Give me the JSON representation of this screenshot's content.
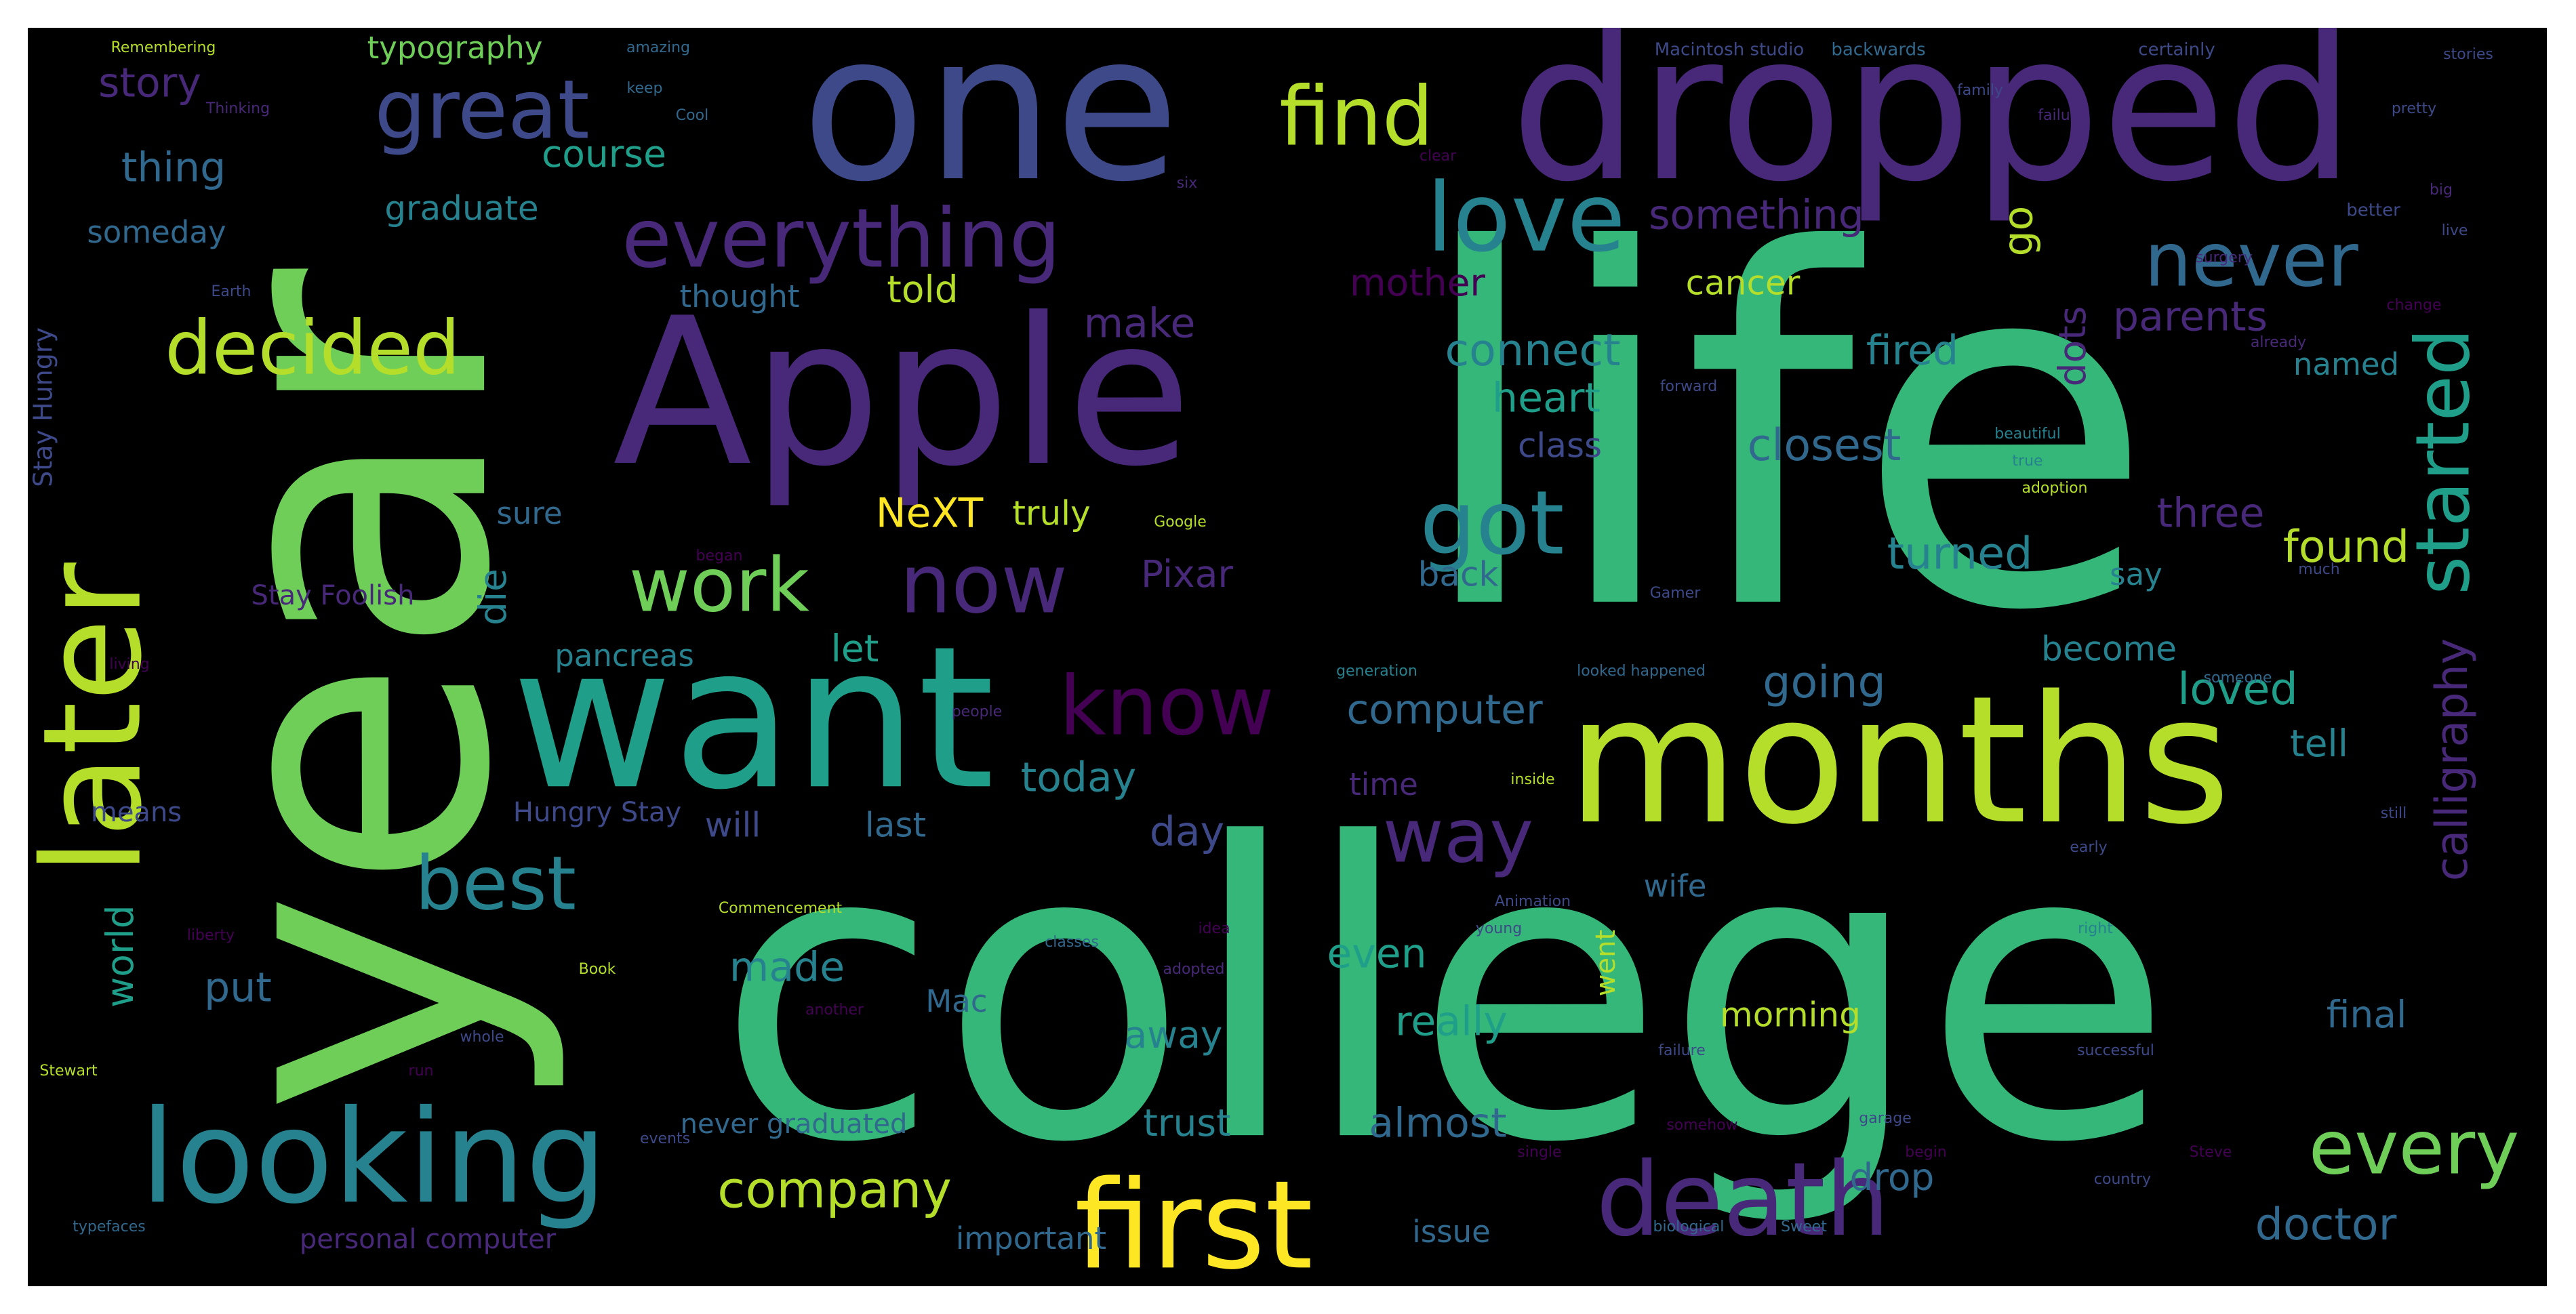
{
  "background_color": "#000000",
  "frame_color": "#ffffff",
  "palette": [
    "#440154",
    "#482878",
    "#3e4989",
    "#31688e",
    "#26828e",
    "#1f9e89",
    "#35b779",
    "#6ece58",
    "#b5de2b",
    "#fde725"
  ],
  "words": [
    {
      "text": "life",
      "color": "#35b779"
    },
    {
      "text": "college",
      "color": "#35b779"
    },
    {
      "text": "year",
      "color": "#6ece58"
    },
    {
      "text": "one",
      "color": "#3e4989"
    },
    {
      "text": "dropped",
      "color": "#482878"
    },
    {
      "text": "Apple",
      "color": "#482878"
    },
    {
      "text": "want",
      "color": "#1f9e89"
    },
    {
      "text": "months",
      "color": "#b5de2b"
    },
    {
      "text": "later",
      "color": "#b5de2b"
    },
    {
      "text": "looking",
      "color": "#26828e"
    },
    {
      "text": "first",
      "color": "#fde725"
    },
    {
      "text": "death",
      "color": "#482878"
    },
    {
      "text": "great",
      "color": "#3e4989"
    },
    {
      "text": "find",
      "color": "#b5de2b"
    },
    {
      "text": "love",
      "color": "#26828e"
    },
    {
      "text": "everything",
      "color": "#482878"
    },
    {
      "text": "never",
      "color": "#31688e"
    },
    {
      "text": "decided",
      "color": "#b5de2b"
    },
    {
      "text": "got",
      "color": "#26828e"
    },
    {
      "text": "now",
      "color": "#482878"
    },
    {
      "text": "work",
      "color": "#6ece58"
    },
    {
      "text": "know",
      "color": "#440154"
    },
    {
      "text": "started",
      "color": "#1f9e89"
    },
    {
      "text": "way",
      "color": "#482878"
    },
    {
      "text": "best",
      "color": "#26828e"
    },
    {
      "text": "every",
      "color": "#6ece58"
    },
    {
      "text": "company",
      "color": "#b5de2b"
    },
    {
      "text": "story",
      "color": "#482878"
    },
    {
      "text": "typography",
      "color": "#6ece58"
    },
    {
      "text": "thing",
      "color": "#31688e"
    },
    {
      "text": "course",
      "color": "#1f9e89"
    },
    {
      "text": "graduate",
      "color": "#26828e"
    },
    {
      "text": "someday",
      "color": "#31688e"
    },
    {
      "text": "something",
      "color": "#482878"
    },
    {
      "text": "go",
      "color": "#b5de2b"
    },
    {
      "text": "mother",
      "color": "#440154"
    },
    {
      "text": "cancer",
      "color": "#b5de2b"
    },
    {
      "text": "parents",
      "color": "#482878"
    },
    {
      "text": "calligraphy",
      "color": "#482878"
    },
    {
      "text": "thought",
      "color": "#31688e"
    },
    {
      "text": "told",
      "color": "#b5de2b"
    },
    {
      "text": "make",
      "color": "#482878"
    },
    {
      "text": "connect",
      "color": "#26828e"
    },
    {
      "text": "fired",
      "color": "#26828e"
    },
    {
      "text": "dots",
      "color": "#482878"
    },
    {
      "text": "heart",
      "color": "#1f9e89"
    },
    {
      "text": "named",
      "color": "#26828e"
    },
    {
      "text": "class",
      "color": "#3e4989"
    },
    {
      "text": "closest",
      "color": "#31688e"
    },
    {
      "text": "three",
      "color": "#482878"
    },
    {
      "text": "found",
      "color": "#b5de2b"
    },
    {
      "text": "NeXT",
      "color": "#fde725"
    },
    {
      "text": "truly",
      "color": "#b5de2b"
    },
    {
      "text": "sure",
      "color": "#31688e"
    },
    {
      "text": "turned",
      "color": "#26828e"
    },
    {
      "text": "say",
      "color": "#26828e"
    },
    {
      "text": "Pixar",
      "color": "#482878"
    },
    {
      "text": "back",
      "color": "#31688e"
    },
    {
      "text": "die",
      "color": "#26828e"
    },
    {
      "text": "Stay Foolish",
      "color": "#482878"
    },
    {
      "text": "pancreas",
      "color": "#26828e"
    },
    {
      "text": "let",
      "color": "#1f9e89"
    },
    {
      "text": "become",
      "color": "#26828e"
    },
    {
      "text": "going",
      "color": "#31688e"
    },
    {
      "text": "loved",
      "color": "#1f9e89"
    },
    {
      "text": "computer",
      "color": "#31688e"
    },
    {
      "text": "tell",
      "color": "#26828e"
    },
    {
      "text": "today",
      "color": "#26828e"
    },
    {
      "text": "time",
      "color": "#482878"
    },
    {
      "text": "Hungry Stay",
      "color": "#3e4989"
    },
    {
      "text": "means",
      "color": "#3e4989"
    },
    {
      "text": "will",
      "color": "#3e4989"
    },
    {
      "text": "last",
      "color": "#31688e"
    },
    {
      "text": "day",
      "color": "#3e4989"
    },
    {
      "text": "wife",
      "color": "#31688e"
    },
    {
      "text": "world",
      "color": "#1f9e89"
    },
    {
      "text": "put",
      "color": "#31688e"
    },
    {
      "text": "made",
      "color": "#26828e"
    },
    {
      "text": "even",
      "color": "#1f9e89"
    },
    {
      "text": "Mac",
      "color": "#31688e"
    },
    {
      "text": "really",
      "color": "#1f9e89"
    },
    {
      "text": "away",
      "color": "#26828e"
    },
    {
      "text": "morning",
      "color": "#b5de2b"
    },
    {
      "text": "final",
      "color": "#31688e"
    },
    {
      "text": "almost",
      "color": "#31688e"
    },
    {
      "text": "never graduated",
      "color": "#31688e"
    },
    {
      "text": "trust",
      "color": "#26828e"
    },
    {
      "text": "drop",
      "color": "#31688e"
    },
    {
      "text": "doctor",
      "color": "#31688e"
    },
    {
      "text": "important",
      "color": "#31688e"
    },
    {
      "text": "issue",
      "color": "#31688e"
    },
    {
      "text": "personal computer",
      "color": "#482878"
    },
    {
      "text": "Stay Hungry",
      "color": "#3e4989"
    },
    {
      "text": "went",
      "color": "#b5de2b"
    },
    {
      "text": "Remembering",
      "color": "#b5de2b"
    },
    {
      "text": "amazing",
      "color": "#31688e"
    },
    {
      "text": "Macintosh studio",
      "color": "#3e4989"
    },
    {
      "text": "backwards",
      "color": "#31688e"
    },
    {
      "text": "certainly",
      "color": "#3e4989"
    },
    {
      "text": "stories",
      "color": "#3e4989"
    },
    {
      "text": "family",
      "color": "#3e4989"
    },
    {
      "text": "pretty",
      "color": "#3e4989"
    },
    {
      "text": "failure",
      "color": "#482878"
    },
    {
      "text": "big",
      "color": "#482878"
    },
    {
      "text": "Thinking",
      "color": "#482878"
    },
    {
      "text": "keep",
      "color": "#31688e"
    },
    {
      "text": "Cool",
      "color": "#31688e"
    },
    {
      "text": "clear",
      "color": "#440154"
    },
    {
      "text": "better",
      "color": "#3e4989"
    },
    {
      "text": "six",
      "color": "#482878"
    },
    {
      "text": "live",
      "color": "#3e4989"
    },
    {
      "text": "Earth",
      "color": "#3e4989"
    },
    {
      "text": "surgery",
      "color": "#482878"
    },
    {
      "text": "change",
      "color": "#440154"
    },
    {
      "text": "already",
      "color": "#482878"
    },
    {
      "text": "forward",
      "color": "#3e4989"
    },
    {
      "text": "beautiful",
      "color": "#26828e"
    },
    {
      "text": "true",
      "color": "#26828e"
    },
    {
      "text": "adoption",
      "color": "#b5de2b"
    },
    {
      "text": "Google",
      "color": "#b5de2b"
    },
    {
      "text": "began",
      "color": "#440154"
    },
    {
      "text": "much",
      "color": "#3e4989"
    },
    {
      "text": "living",
      "color": "#440154"
    },
    {
      "text": "generation",
      "color": "#26828e"
    },
    {
      "text": "looked happened",
      "color": "#31688e"
    },
    {
      "text": "someone",
      "color": "#31688e"
    },
    {
      "text": "people",
      "color": "#482878"
    },
    {
      "text": "inside",
      "color": "#b5de2b"
    },
    {
      "text": "Commencement",
      "color": "#b5de2b"
    },
    {
      "text": "Animation",
      "color": "#3e4989"
    },
    {
      "text": "young",
      "color": "#3e4989"
    },
    {
      "text": "classes",
      "color": "#31688e"
    },
    {
      "text": "adopted",
      "color": "#482878"
    },
    {
      "text": "another",
      "color": "#440154"
    },
    {
      "text": "failure",
      "color": "#3e4989"
    },
    {
      "text": "successful",
      "color": "#3e4989"
    },
    {
      "text": "somehow",
      "color": "#440154"
    },
    {
      "text": "garage",
      "color": "#3e4989"
    },
    {
      "text": "single",
      "color": "#440154"
    },
    {
      "text": "begin",
      "color": "#440154"
    },
    {
      "text": "Steve",
      "color": "#440154"
    },
    {
      "text": "country",
      "color": "#3e4989"
    },
    {
      "text": "typefaces",
      "color": "#31688e"
    },
    {
      "text": "biological",
      "color": "#31688e"
    },
    {
      "text": "Sweet",
      "color": "#31688e"
    },
    {
      "text": "Stewart",
      "color": "#b5de2b"
    },
    {
      "text": "liberty",
      "color": "#440154"
    },
    {
      "text": "whole",
      "color": "#3e4989"
    },
    {
      "text": "run",
      "color": "#440154"
    },
    {
      "text": "events",
      "color": "#3e4989"
    },
    {
      "text": "Book",
      "color": "#b5de2b"
    },
    {
      "text": "idea",
      "color": "#440154"
    },
    {
      "text": "right",
      "color": "#26828e"
    },
    {
      "text": "early",
      "color": "#3e4989"
    },
    {
      "text": "still",
      "color": "#3e4989"
    },
    {
      "text": "Gamer",
      "color": "#3e4989"
    }
  ]
}
